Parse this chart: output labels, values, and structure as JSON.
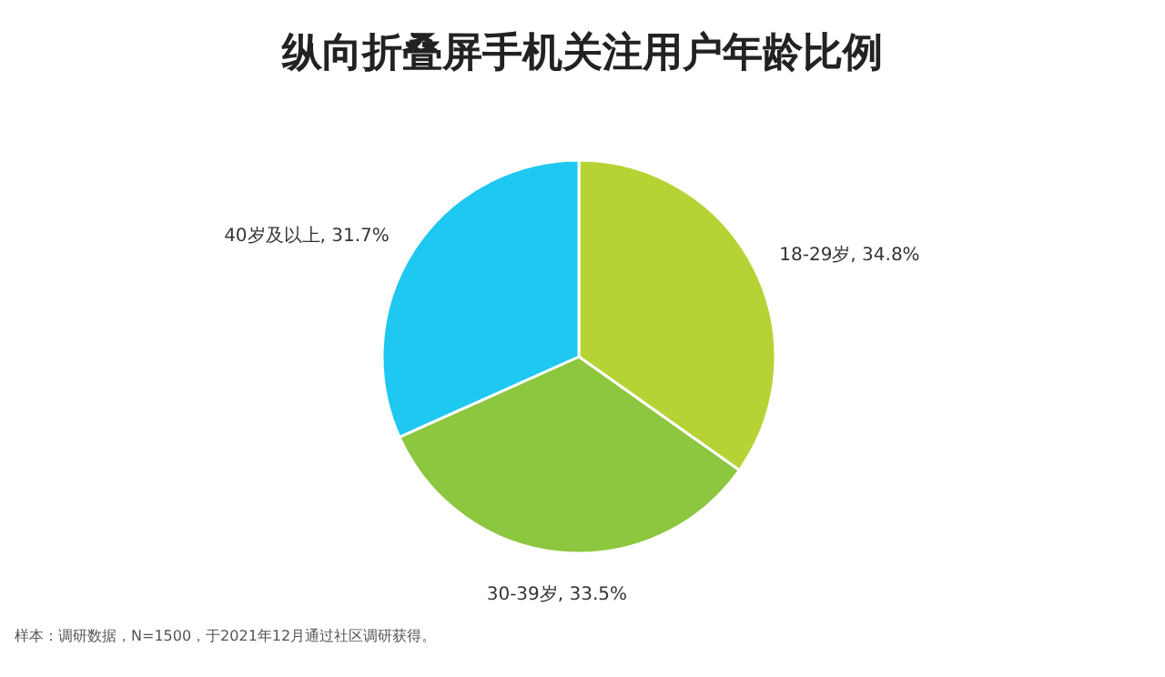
{
  "chart_data": {
    "type": "pie",
    "title": "纵向折叠屏手机关注用户年龄比例",
    "categories": [
      "18-29岁",
      "30-39岁",
      "40岁及以上"
    ],
    "values": [
      34.8,
      33.5,
      31.7
    ],
    "value_labels": [
      "34.8%",
      "33.5%",
      "31.7%"
    ],
    "colors": [
      "#b5d334",
      "#8dc63f",
      "#1ec8f0"
    ],
    "annotations": [
      "样本：调研数据，N=1500，于2021年12月通过社区调研获得。"
    ]
  }
}
